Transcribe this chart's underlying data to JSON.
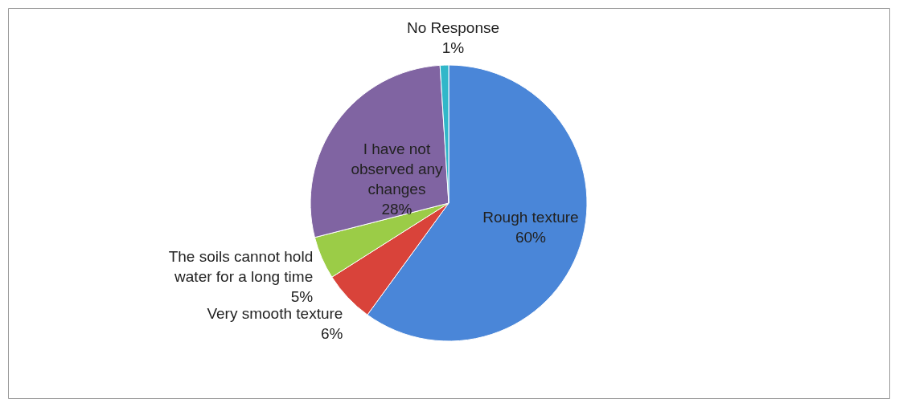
{
  "chart_data": {
    "type": "pie",
    "categories": [
      "Rough texture",
      "Very smooth texture",
      "The soils cannot hold water for a long time",
      "I have not observed any changes",
      "No Response"
    ],
    "values": [
      60,
      6,
      5,
      28,
      1
    ],
    "value_labels": [
      "60%",
      "6%",
      "5%",
      "28%",
      "1%"
    ],
    "colors": [
      "#4a86d8",
      "#d9433a",
      "#9bcc47",
      "#8064a2",
      "#31b7c9"
    ]
  }
}
